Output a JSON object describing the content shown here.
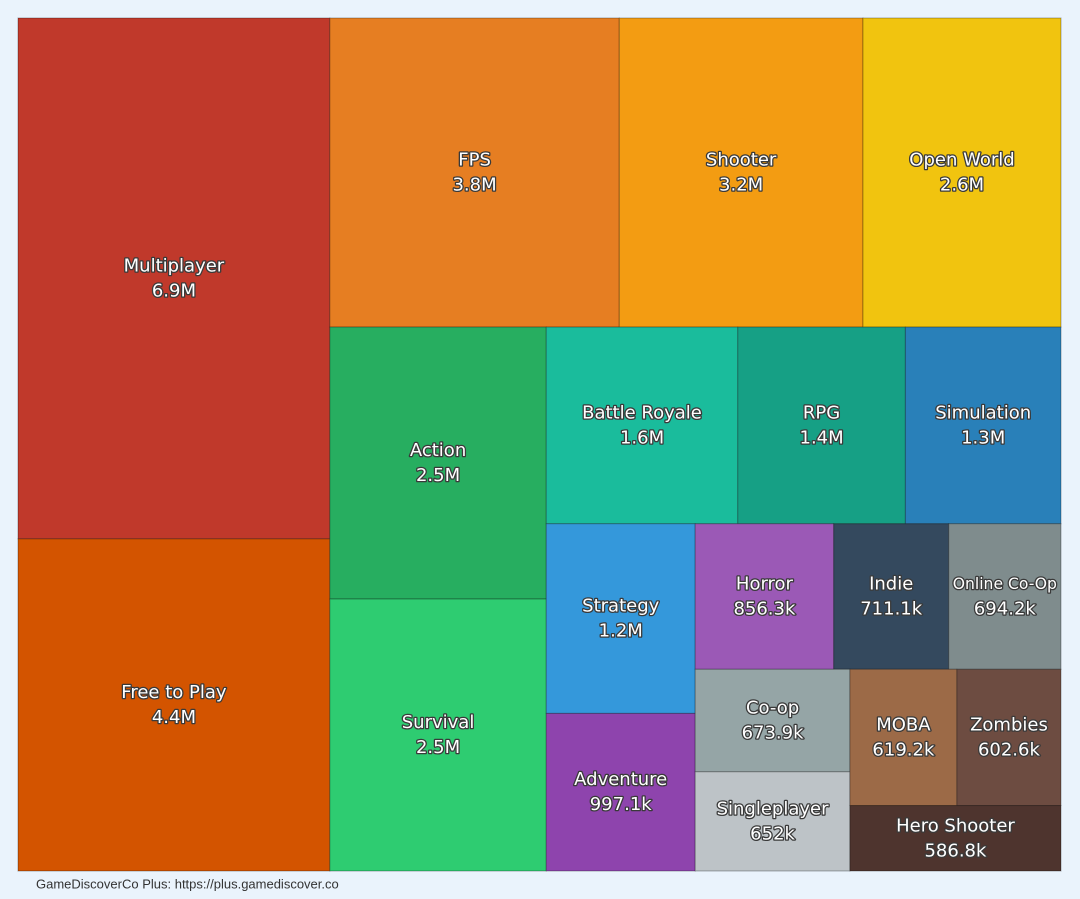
{
  "chart_data": {
    "type": "treemap",
    "categories": [
      "Multiplayer",
      "Free to Play",
      "FPS",
      "Shooter",
      "Open World",
      "Action",
      "Survival",
      "Battle Royale",
      "RPG",
      "Simulation",
      "Strategy",
      "Adventure",
      "Horror",
      "Indie",
      "Online Co-Op",
      "Co-op",
      "Singleplayer",
      "MOBA",
      "Zombies",
      "Hero Shooter"
    ],
    "values": [
      6900000,
      4400000,
      3800000,
      3200000,
      2600000,
      2500000,
      2500000,
      1600000,
      1400000,
      1300000,
      1200000,
      997100,
      856300,
      711100,
      694200,
      673900,
      652000,
      619200,
      602600,
      586800
    ],
    "value_labels": [
      "6.9M",
      "4.4M",
      "3.8M",
      "3.2M",
      "2.6M",
      "2.5M",
      "2.5M",
      "1.6M",
      "1.4M",
      "1.3M",
      "1.2M",
      "997.1k",
      "856.3k",
      "711.1k",
      "694.2k",
      "673.9k",
      "652k",
      "619.2k",
      "602.6k",
      "586.8k"
    ],
    "colors": [
      "#c0392b",
      "#d35400",
      "#e67e22",
      "#f39c12",
      "#f1c40f",
      "#27ae60",
      "#2ecc71",
      "#1abc9c",
      "#16a085",
      "#2980b9",
      "#3498db",
      "#8e44ad",
      "#9b59b6",
      "#34495e",
      "#7f8c8d",
      "#95a5a6",
      "#bdc3c7",
      "#9c6a47",
      "#6d4c41",
      "#4e342e"
    ],
    "footer": "GameDiscoverCo Plus: https://plus.gamediscover.co"
  }
}
